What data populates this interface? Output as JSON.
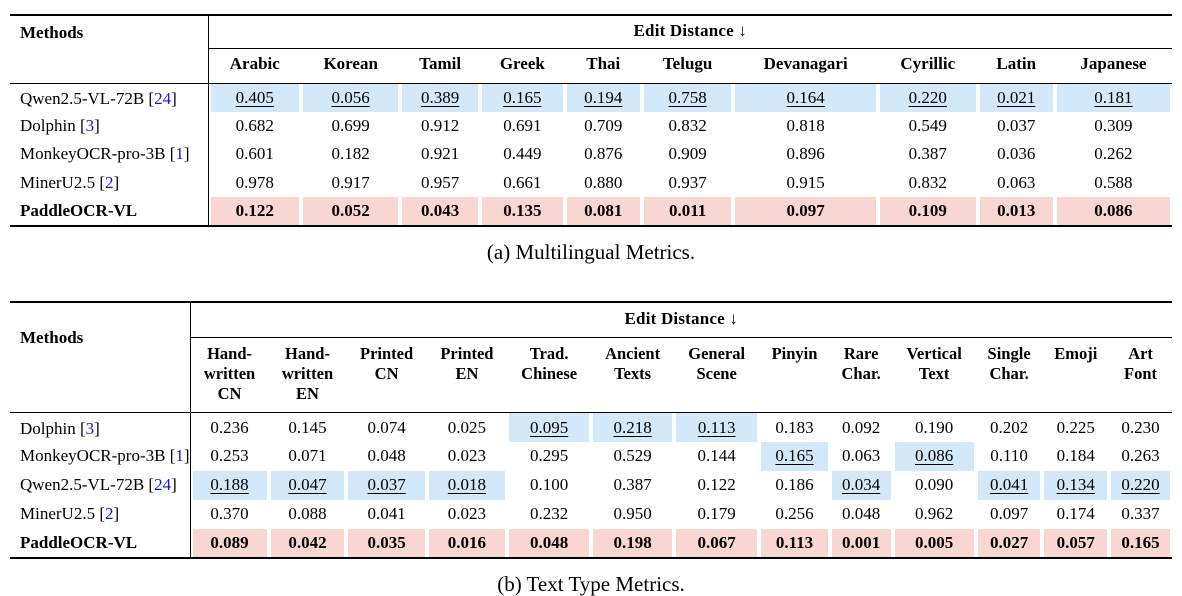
{
  "colors": {
    "second_best_bg": "#d3e9f9",
    "best_bg": "#fad6d3",
    "citation_blue": "#1414e6"
  },
  "tables": [
    {
      "name": "multilingual-metrics",
      "caption": "(a) Multilingual Metrics.",
      "methods_header": "Methods",
      "group_header": "Edit Distance ↓",
      "columns": [
        "Arabic",
        "Korean",
        "Tamil",
        "Greek",
        "Thai",
        "Telugu",
        "Devanagari",
        "Cyrillic",
        "Latin",
        "Japanese"
      ],
      "rows": [
        {
          "method": "Qwen2.5-VL-72B",
          "citation": "24",
          "values": [
            "0.405",
            "0.056",
            "0.389",
            "0.165",
            "0.194",
            "0.758",
            "0.164",
            "0.220",
            "0.021",
            "0.181"
          ],
          "second_best_cells": [
            0,
            1,
            2,
            3,
            4,
            5,
            6,
            7,
            8,
            9
          ]
        },
        {
          "method": "Dolphin",
          "citation": "3",
          "values": [
            "0.682",
            "0.699",
            "0.912",
            "0.691",
            "0.709",
            "0.832",
            "0.818",
            "0.549",
            "0.037",
            "0.309"
          ]
        },
        {
          "method": "MonkeyOCR-pro-3B",
          "citation": "1",
          "values": [
            "0.601",
            "0.182",
            "0.921",
            "0.449",
            "0.876",
            "0.909",
            "0.896",
            "0.387",
            "0.036",
            "0.262"
          ]
        },
        {
          "method": "MinerU2.5",
          "citation": "2",
          "values": [
            "0.978",
            "0.917",
            "0.957",
            "0.661",
            "0.880",
            "0.937",
            "0.915",
            "0.832",
            "0.063",
            "0.588"
          ]
        },
        {
          "method": "PaddleOCR-VL",
          "citation": null,
          "best_row": true,
          "values": [
            "0.122",
            "0.052",
            "0.043",
            "0.135",
            "0.081",
            "0.011",
            "0.097",
            "0.109",
            "0.013",
            "0.086"
          ]
        }
      ]
    },
    {
      "name": "text-type-metrics",
      "caption": "(b) Text Type Metrics.",
      "methods_header": "Methods",
      "group_header": "Edit Distance ↓",
      "columns": [
        "Hand-\nwritten\nCN",
        "Hand-\nwritten\nEN",
        "Printed\nCN",
        "Printed\nEN",
        "Trad.\nChinese",
        "Ancient\nTexts",
        "General\nScene",
        "Pinyin",
        "Rare\nChar.",
        "Vertical\nText",
        "Single\nChar.",
        "Emoji",
        "Art\nFont"
      ],
      "rows": [
        {
          "method": "Dolphin",
          "citation": "3",
          "values": [
            "0.236",
            "0.145",
            "0.074",
            "0.025",
            "0.095",
            "0.218",
            "0.113",
            "0.183",
            "0.092",
            "0.190",
            "0.202",
            "0.225",
            "0.230"
          ],
          "second_best_cells": [
            4,
            5,
            6
          ]
        },
        {
          "method": "MonkeyOCR-pro-3B",
          "citation": "1",
          "values": [
            "0.253",
            "0.071",
            "0.048",
            "0.023",
            "0.295",
            "0.529",
            "0.144",
            "0.165",
            "0.063",
            "0.086",
            "0.110",
            "0.184",
            "0.263"
          ],
          "second_best_cells": [
            7,
            9
          ]
        },
        {
          "method": "Qwen2.5-VL-72B",
          "citation": "24",
          "values": [
            "0.188",
            "0.047",
            "0.037",
            "0.018",
            "0.100",
            "0.387",
            "0.122",
            "0.186",
            "0.034",
            "0.090",
            "0.041",
            "0.134",
            "0.220"
          ],
          "second_best_cells": [
            0,
            1,
            2,
            3,
            8,
            10,
            11,
            12
          ]
        },
        {
          "method": "MinerU2.5",
          "citation": "2",
          "values": [
            "0.370",
            "0.088",
            "0.041",
            "0.023",
            "0.232",
            "0.950",
            "0.179",
            "0.256",
            "0.048",
            "0.962",
            "0.097",
            "0.174",
            "0.337"
          ]
        },
        {
          "method": "PaddleOCR-VL",
          "citation": null,
          "best_row": true,
          "values": [
            "0.089",
            "0.042",
            "0.035",
            "0.016",
            "0.048",
            "0.198",
            "0.067",
            "0.113",
            "0.001",
            "0.005",
            "0.027",
            "0.057",
            "0.165"
          ]
        }
      ]
    }
  ]
}
